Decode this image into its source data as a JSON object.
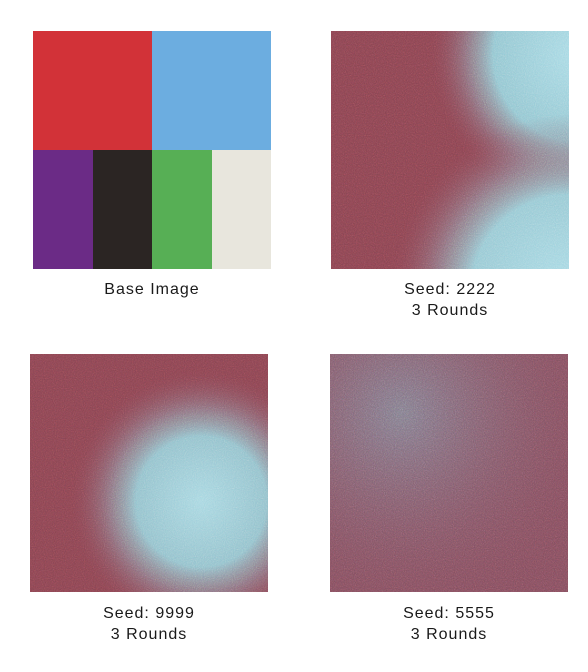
{
  "panels": [
    {
      "id": "base",
      "caption_line1": "Base Image",
      "caption_line2": "",
      "blocks": [
        {
          "name": "red-block",
          "color": "#d23238"
        },
        {
          "name": "light-blue-block",
          "color": "#6cade0"
        },
        {
          "name": "purple-block",
          "color": "#6b2b86"
        },
        {
          "name": "black-block",
          "color": "#2b2523"
        },
        {
          "name": "green-block",
          "color": "#57af55"
        },
        {
          "name": "off-white-block",
          "color": "#e8e6dd"
        }
      ]
    },
    {
      "id": "seed-2222",
      "caption_line1": "Seed: 2222",
      "caption_line2": "3 Rounds",
      "noise_base_color": "#86434f",
      "noise_highlight_color": "#9dcfdd"
    },
    {
      "id": "seed-9999",
      "caption_line1": "Seed: 9999",
      "caption_line2": "3 Rounds",
      "noise_base_color": "#86434f",
      "noise_highlight_color": "#9dcfdd"
    },
    {
      "id": "seed-5555",
      "caption_line1": "Seed: 5555",
      "caption_line2": "3 Rounds",
      "noise_base_color": "#7f4c5b",
      "noise_highlight_color": "#8bb7c6"
    }
  ]
}
